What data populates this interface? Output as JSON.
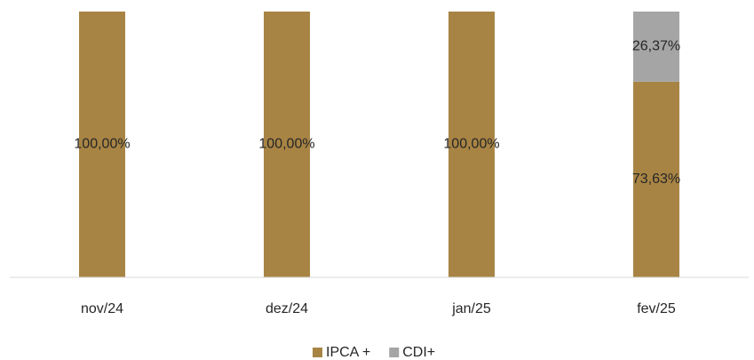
{
  "chart_data": {
    "type": "stacked_bar",
    "categories": [
      "nov/24",
      "dez/24",
      "jan/25",
      "fev/25"
    ],
    "series": [
      {
        "name": "IPCA +",
        "color": "#a88444",
        "values": [
          100,
          100,
          100,
          73.63
        ],
        "value_labels": [
          "100,00%",
          "100,00%",
          "100,00%",
          "73,63%"
        ]
      },
      {
        "name": "CDI+",
        "color": "#a5a5a5",
        "values": [
          0,
          0,
          0,
          26.37
        ],
        "value_labels": [
          null,
          null,
          null,
          "26,37%"
        ]
      }
    ],
    "ylim": [
      0,
      100
    ],
    "legend": "bottom"
  }
}
